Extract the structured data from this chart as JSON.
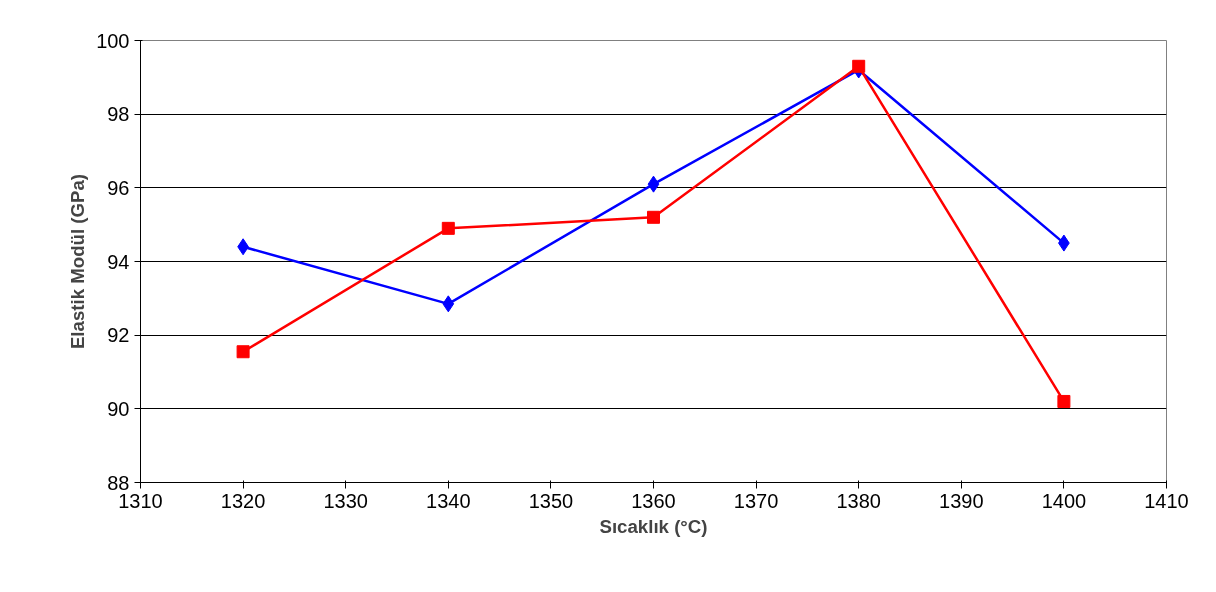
{
  "chart_data": {
    "type": "line",
    "xlabel": "Sıcaklık (°C)",
    "ylabel": "Elastik Modül (GPa)",
    "x": [
      1320,
      1340,
      1360,
      1380,
      1400
    ],
    "series": [
      {
        "color": "#0000ff",
        "marker": "diamond",
        "values": [
          94.4,
          92.85,
          96.1,
          99.2,
          94.5
        ]
      },
      {
        "color": "#ff0000",
        "marker": "square",
        "values": [
          91.55,
          94.9,
          95.2,
          99.3,
          90.2
        ]
      }
    ],
    "xlim": [
      1310,
      1410
    ],
    "xticks": [
      1310,
      1320,
      1330,
      1340,
      1350,
      1360,
      1370,
      1380,
      1390,
      1400,
      1410
    ],
    "ylim": [
      88,
      100
    ],
    "yticks": [
      88,
      90,
      92,
      94,
      96,
      98,
      100
    ],
    "grid": "y",
    "line_style": "solid"
  }
}
